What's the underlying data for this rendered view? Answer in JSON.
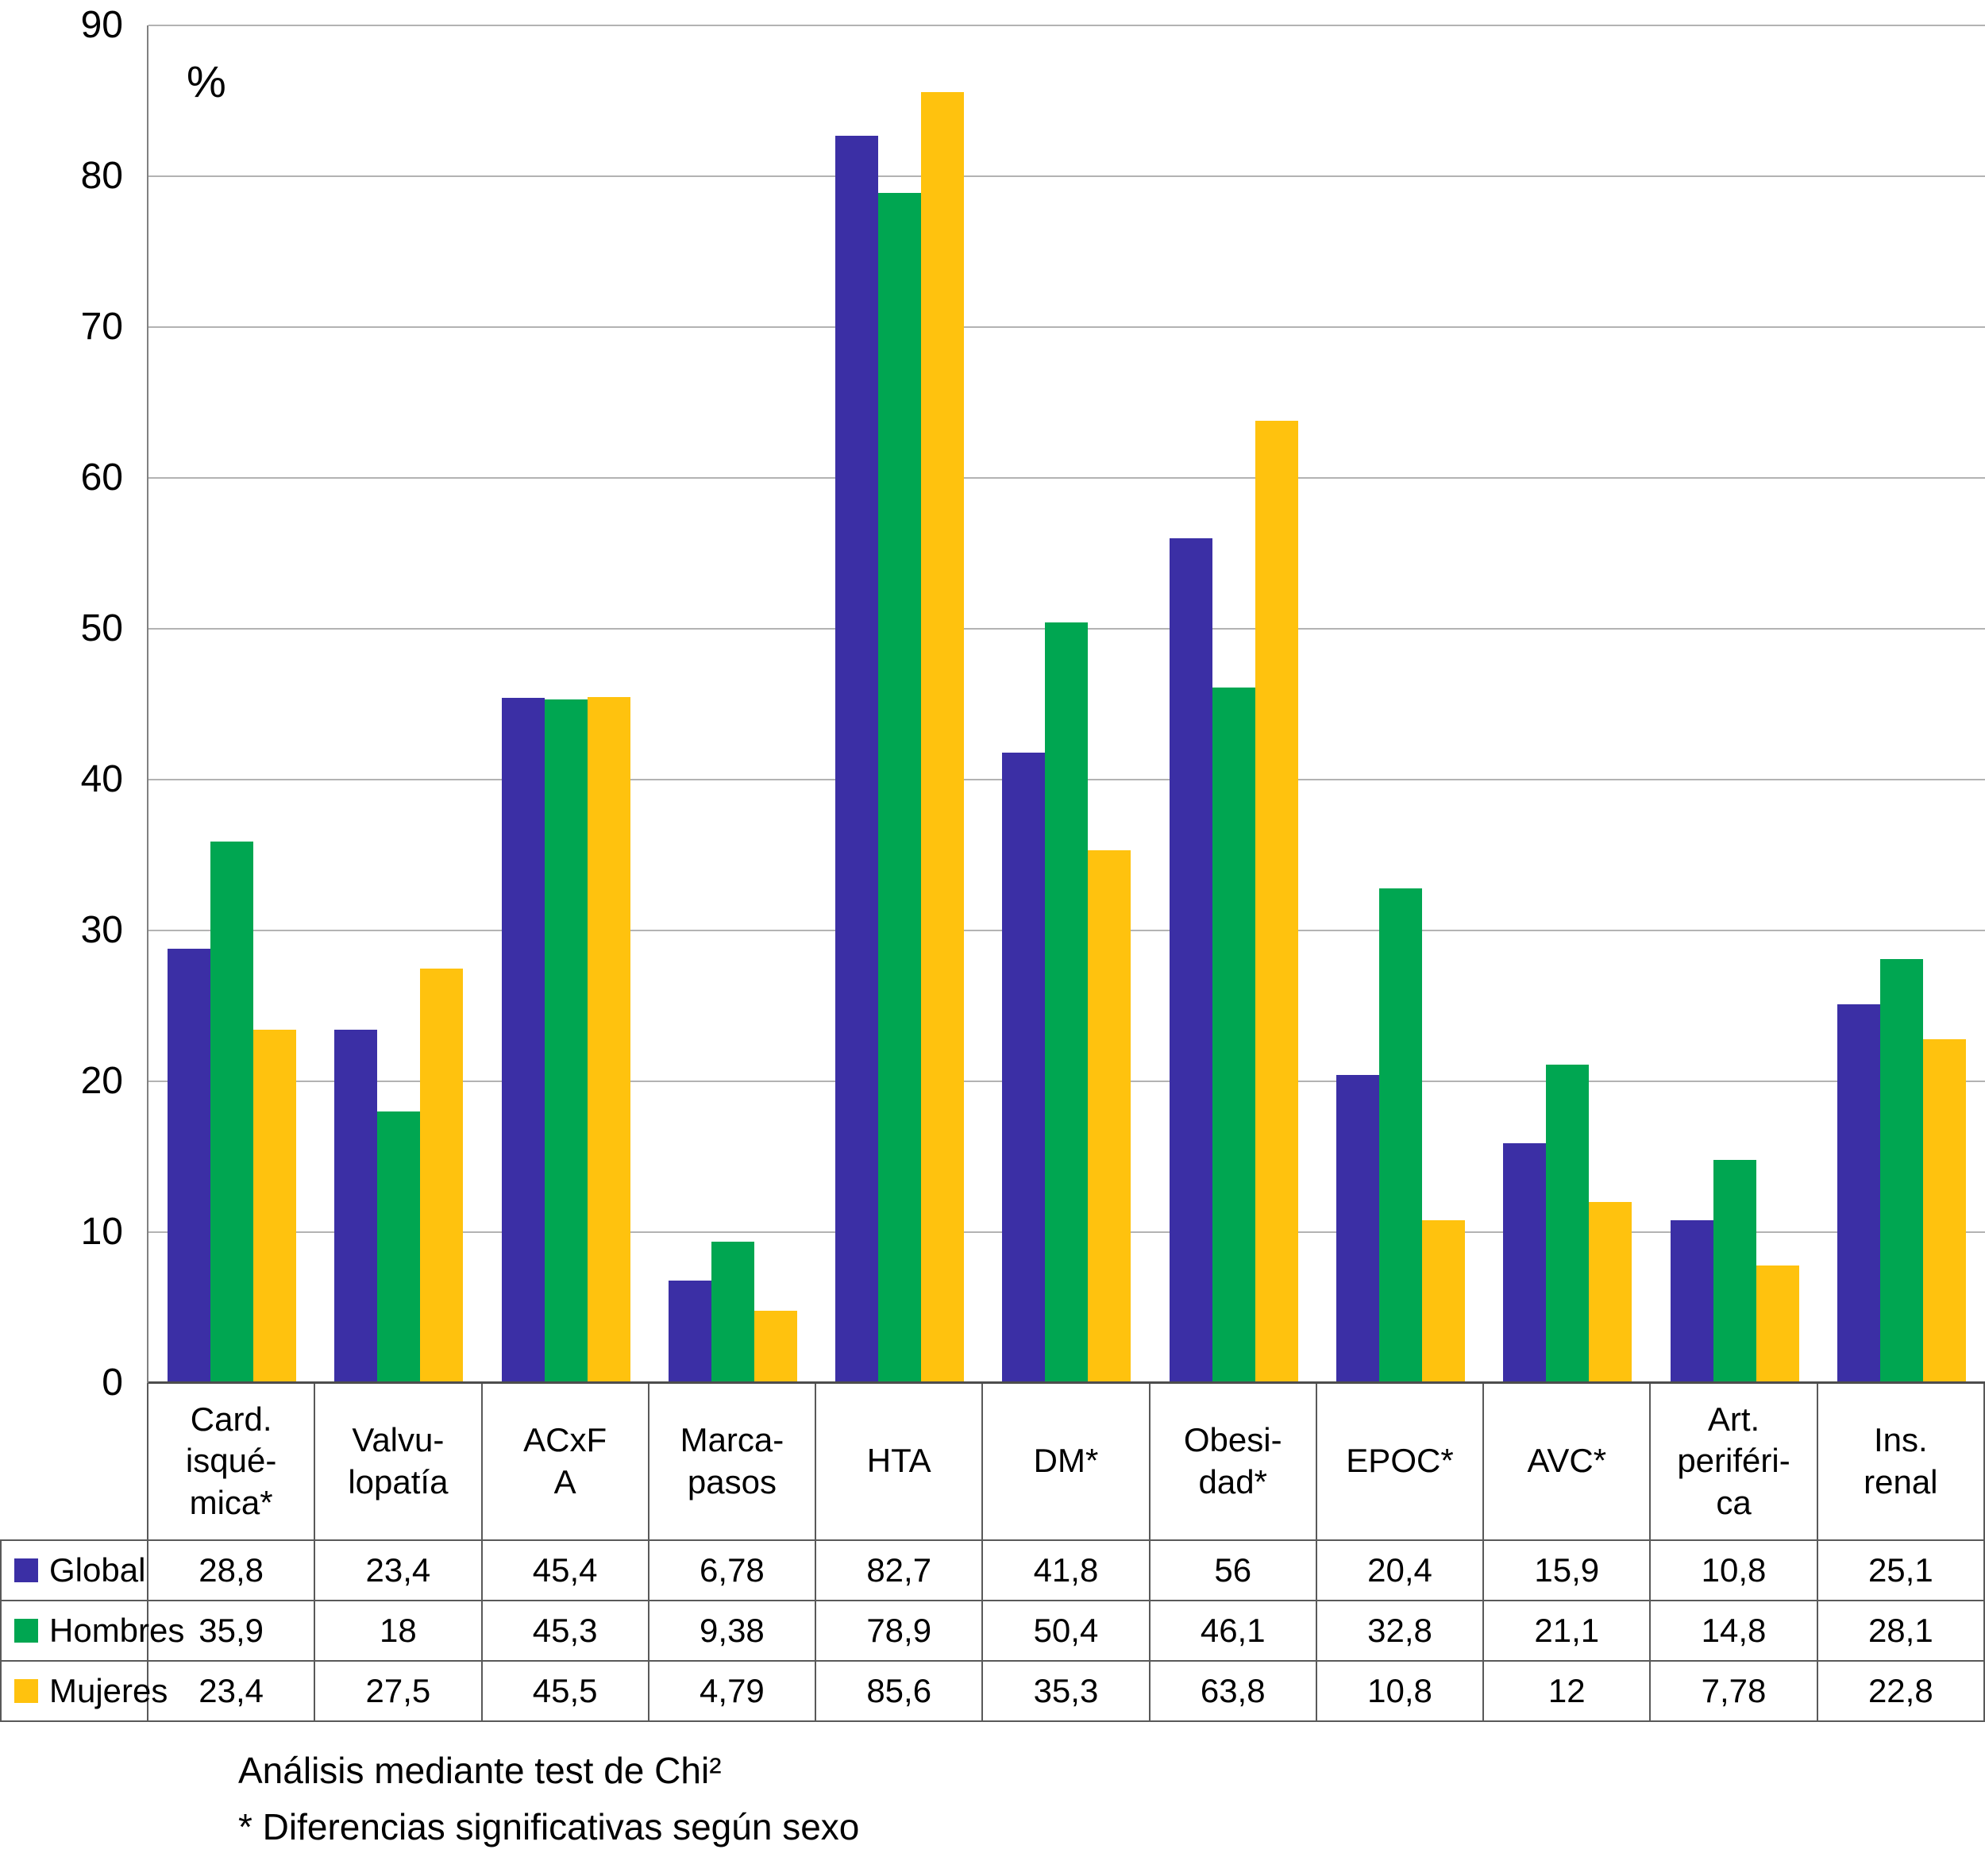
{
  "chart_data": {
    "type": "bar",
    "title": "",
    "percent_label": "%",
    "xlabel": "",
    "ylabel": "%",
    "ylim": [
      0,
      90
    ],
    "yticks": [
      0,
      10,
      20,
      30,
      40,
      50,
      60,
      70,
      80,
      90
    ],
    "grid": true,
    "legend_position": "table-left",
    "categories": [
      "Card.\nisqué-\nmica*",
      "Valvu-\nlopatía",
      "ACxF\nA",
      "Marca-\npasos",
      "HTA",
      "DM*",
      "Obesi-\ndad*",
      "EPOC*",
      "AVC*",
      "Art.\nperiféri-\nca",
      "Ins.\nrenal"
    ],
    "series": [
      {
        "name": "Global",
        "color": "#3B2FA5",
        "values": [
          28.8,
          23.4,
          45.4,
          6.78,
          82.7,
          41.8,
          56,
          20.4,
          15.9,
          10.8,
          25.1
        ],
        "display": [
          "28,8",
          "23,4",
          "45,4",
          "6,78",
          "82,7",
          "41,8",
          "56",
          "20,4",
          "15,9",
          "10,8",
          "25,1"
        ]
      },
      {
        "name": "Hombres",
        "color": "#00A651",
        "values": [
          35.9,
          18,
          45.3,
          9.38,
          78.9,
          50.4,
          46.1,
          32.8,
          21.1,
          14.8,
          28.1
        ],
        "display": [
          "35,9",
          "18",
          "45,3",
          "9,38",
          "78,9",
          "50,4",
          "46,1",
          "32,8",
          "21,1",
          "14,8",
          "28,1"
        ]
      },
      {
        "name": "Mujeres",
        "color": "#FFC20E",
        "values": [
          23.4,
          27.5,
          45.5,
          4.79,
          85.6,
          35.3,
          63.8,
          10.8,
          12,
          7.78,
          22.8
        ],
        "display": [
          "23,4",
          "27,5",
          "45,5",
          "4,79",
          "85,6",
          "35,3",
          "63,8",
          "10,8",
          "12",
          "7,78",
          "22,8"
        ]
      }
    ],
    "footnotes": [
      "Análisis mediante test de Chi²",
      "* Diferencias significativas según sexo"
    ]
  }
}
